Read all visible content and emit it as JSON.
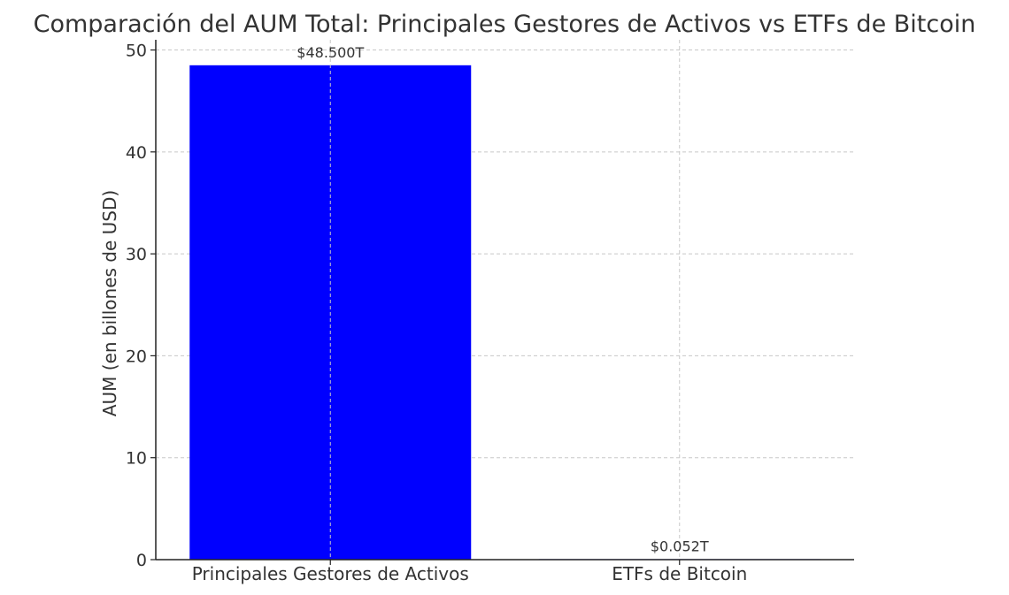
{
  "chart_data": {
    "type": "bar",
    "title": "Comparación del AUM Total: Principales Gestores de Activos vs ETFs de Bitcoin",
    "xlabel": "",
    "ylabel": "AUM (en billones de USD)",
    "categories": [
      "Principales Gestores de Activos",
      "ETFs de Bitcoin"
    ],
    "values": [
      48.5,
      0.052
    ],
    "data_labels": [
      "$48.500T",
      "$0.052T"
    ],
    "ylim": [
      0,
      51
    ],
    "yticks": [
      0,
      10,
      20,
      30,
      40,
      50
    ],
    "ytick_labels": [
      "0",
      "10",
      "20",
      "30",
      "40",
      "50"
    ],
    "colors": [
      "#0000ff",
      "#0000ff"
    ],
    "grid": true
  }
}
